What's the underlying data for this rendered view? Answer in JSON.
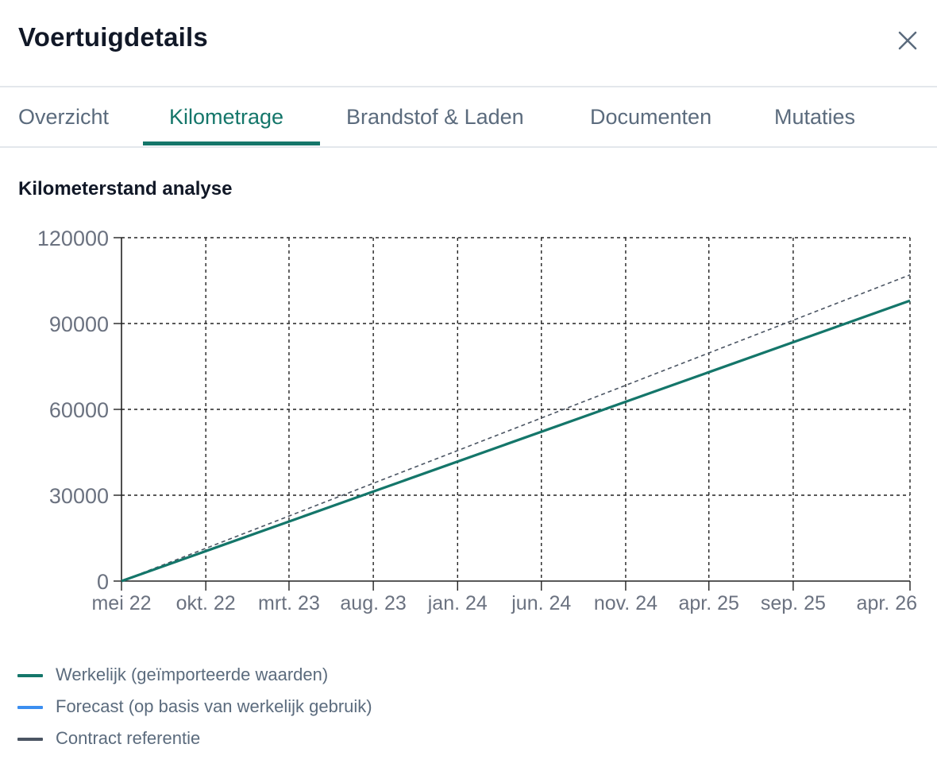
{
  "dialog": {
    "title": "Voertuigdetails",
    "close_icon": "close-icon"
  },
  "tabs": [
    {
      "label": "Overzicht",
      "active": false
    },
    {
      "label": "Kilometrage",
      "active": true
    },
    {
      "label": "Brandstof & Laden",
      "active": false
    },
    {
      "label": "Documenten",
      "active": false
    },
    {
      "label": "Mutaties",
      "active": false
    }
  ],
  "section": {
    "title": "Kilometerstand analyse"
  },
  "chart_data": {
    "type": "line",
    "title": "",
    "xlabel": "",
    "ylabel": "",
    "x_range": [
      "2022-05-01",
      "2026-04-01"
    ],
    "ylim": [
      0,
      120000
    ],
    "yticks": [
      0,
      30000,
      60000,
      90000,
      120000
    ],
    "xticks": [
      {
        "date": "2022-05-01",
        "label": "mei 22"
      },
      {
        "date": "2022-10-01",
        "label": "okt. 22"
      },
      {
        "date": "2023-03-01",
        "label": "mrt. 23"
      },
      {
        "date": "2023-08-01",
        "label": "aug. 23"
      },
      {
        "date": "2024-01-01",
        "label": "jan. 24"
      },
      {
        "date": "2024-06-01",
        "label": "jun. 24"
      },
      {
        "date": "2024-11-01",
        "label": "nov. 24"
      },
      {
        "date": "2025-04-01",
        "label": "apr. 25"
      },
      {
        "date": "2025-09-01",
        "label": "sep. 25"
      },
      {
        "date": "2026-04-01",
        "label": "apr. 26"
      }
    ],
    "grid": true,
    "legend_position": "bottom",
    "series": [
      {
        "name": "Werkelijk (geïmporteerde waarden)",
        "color": "#14766a",
        "style": "solid",
        "points": [
          {
            "x": "2022-05-01",
            "y": 0
          },
          {
            "x": "2026-04-01",
            "y": 98000
          }
        ]
      },
      {
        "name": "Forecast (op basis van werkelijk gebruik)",
        "color": "#3b8ef0",
        "style": "solid",
        "points": []
      },
      {
        "name": "Contract referentie",
        "color": "#4b5563",
        "style": "dashed",
        "points": [
          {
            "x": "2022-05-01",
            "y": 0
          },
          {
            "x": "2026-04-01",
            "y": 107000
          }
        ]
      }
    ]
  }
}
